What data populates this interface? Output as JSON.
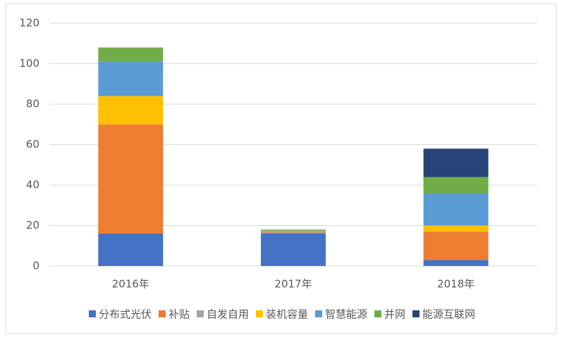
{
  "chart_data": {
    "type": "stacked_bar",
    "categories": [
      "2016年",
      "2017年",
      "2018年"
    ],
    "series": [
      {
        "name": "分布式光伏",
        "color": "#4472c4",
        "values": [
          16,
          16,
          3
        ]
      },
      {
        "name": "补贴",
        "color": "#ed7d31",
        "values": [
          54,
          0.5,
          14
        ]
      },
      {
        "name": "自发自用",
        "color": "#a5a5a5",
        "values": [
          0,
          1,
          0
        ]
      },
      {
        "name": "装机容量",
        "color": "#ffc000",
        "values": [
          14,
          0,
          3
        ]
      },
      {
        "name": "智慧能源",
        "color": "#5b9bd5",
        "values": [
          17,
          0,
          16
        ]
      },
      {
        "name": "并网",
        "color": "#70ad47",
        "values": [
          7,
          0.5,
          8
        ]
      },
      {
        "name": "能源互联网",
        "color": "#264478",
        "values": [
          0,
          0,
          14
        ]
      }
    ],
    "ylim": [
      0,
      120
    ],
    "yticks": [
      0,
      20,
      40,
      60,
      80,
      100,
      120
    ],
    "grid": true,
    "legend": "bottom"
  }
}
